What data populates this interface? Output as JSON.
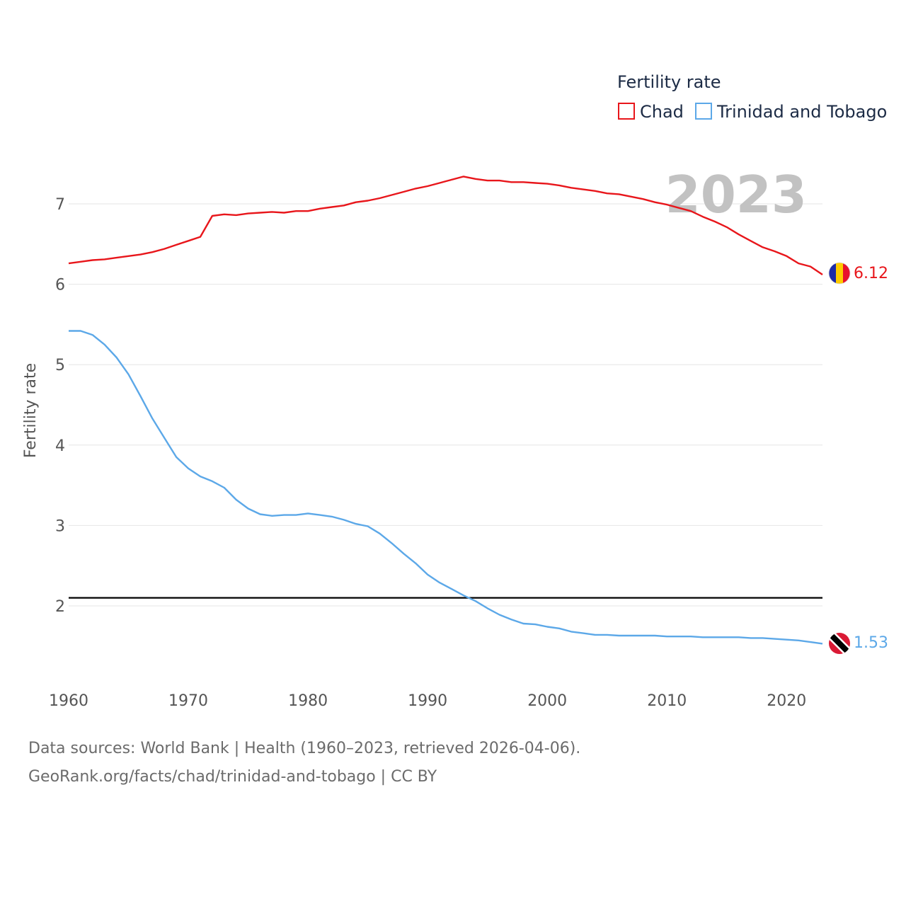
{
  "chart_data": {
    "type": "line",
    "title": "Fertility rate",
    "ylabel": "Fertility rate",
    "xlabel": "",
    "year_label": "2023",
    "xlim": [
      1960,
      2023
    ],
    "ylim": [
      1.0,
      7.8
    ],
    "x_ticks": [
      1960,
      1970,
      1980,
      1990,
      2000,
      2010,
      2020
    ],
    "y_ticks": [
      2,
      3,
      4,
      5,
      6,
      7
    ],
    "reference_line": 2.1,
    "legend": {
      "title": "Fertility rate",
      "position": "top-right"
    },
    "x": [
      1960,
      1961,
      1962,
      1963,
      1964,
      1965,
      1966,
      1967,
      1968,
      1969,
      1970,
      1971,
      1972,
      1973,
      1974,
      1975,
      1976,
      1977,
      1978,
      1979,
      1980,
      1981,
      1982,
      1983,
      1984,
      1985,
      1986,
      1987,
      1988,
      1989,
      1990,
      1991,
      1992,
      1993,
      1994,
      1995,
      1996,
      1997,
      1998,
      1999,
      2000,
      2001,
      2002,
      2003,
      2004,
      2005,
      2006,
      2007,
      2008,
      2009,
      2010,
      2011,
      2012,
      2013,
      2014,
      2015,
      2016,
      2017,
      2018,
      2019,
      2020,
      2021,
      2022,
      2023
    ],
    "series": [
      {
        "name": "Chad",
        "color": "#e8161b",
        "end_label": "6.12",
        "values": [
          6.26,
          6.28,
          6.3,
          6.31,
          6.33,
          6.35,
          6.37,
          6.4,
          6.44,
          6.49,
          6.54,
          6.59,
          6.85,
          6.87,
          6.86,
          6.88,
          6.89,
          6.9,
          6.89,
          6.91,
          6.91,
          6.94,
          6.96,
          6.98,
          7.02,
          7.04,
          7.07,
          7.11,
          7.15,
          7.19,
          7.22,
          7.26,
          7.3,
          7.34,
          7.31,
          7.29,
          7.29,
          7.27,
          7.27,
          7.26,
          7.25,
          7.23,
          7.2,
          7.18,
          7.16,
          7.13,
          7.12,
          7.09,
          7.06,
          7.02,
          6.99,
          6.95,
          6.91,
          6.84,
          6.78,
          6.71,
          6.62,
          6.54,
          6.46,
          6.41,
          6.35,
          6.26,
          6.22,
          6.12
        ]
      },
      {
        "name": "Trinidad and Tobago",
        "color": "#5ca8e8",
        "end_label": "1.53",
        "values": [
          5.42,
          5.42,
          5.37,
          5.25,
          5.09,
          4.88,
          4.61,
          4.33,
          4.09,
          3.85,
          3.71,
          3.61,
          3.55,
          3.47,
          3.32,
          3.21,
          3.14,
          3.12,
          3.13,
          3.13,
          3.15,
          3.13,
          3.11,
          3.07,
          3.02,
          2.99,
          2.9,
          2.78,
          2.65,
          2.53,
          2.39,
          2.29,
          2.21,
          2.13,
          2.06,
          1.97,
          1.89,
          1.83,
          1.78,
          1.77,
          1.74,
          1.72,
          1.68,
          1.66,
          1.64,
          1.64,
          1.63,
          1.63,
          1.63,
          1.63,
          1.62,
          1.62,
          1.62,
          1.61,
          1.61,
          1.61,
          1.61,
          1.6,
          1.6,
          1.59,
          1.58,
          1.57,
          1.55,
          1.53
        ]
      }
    ]
  },
  "footer": {
    "line1": "Data sources: World Bank | Health (1960–2023, retrieved 2026-04-06).",
    "line2": "GeoRank.org/facts/chad/trinidad-and-tobago | CC BY"
  }
}
